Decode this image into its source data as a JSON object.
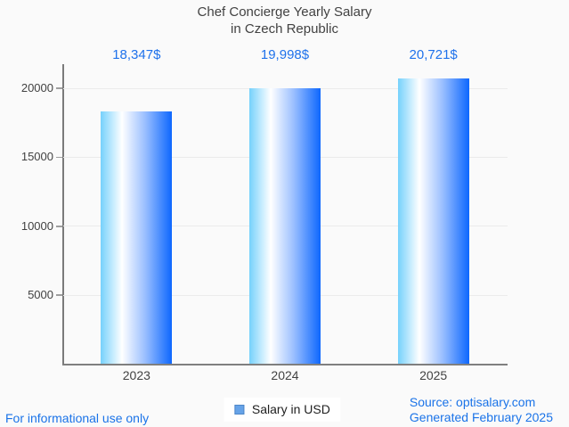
{
  "chart_data": {
    "type": "bar",
    "title": "Chef Concierge Yearly Salary",
    "subtitle": "in Czech Republic",
    "categories": [
      "2023",
      "2024",
      "2025"
    ],
    "values": [
      18347,
      19998,
      20721
    ],
    "value_labels": [
      "18,347$",
      "19,998$",
      "20,721$"
    ],
    "series": [
      {
        "name": "Salary in USD",
        "values": [
          18347,
          19998,
          20721
        ]
      }
    ],
    "yticks": [
      5000,
      10000,
      15000,
      20000
    ],
    "ytick_labels": [
      "5000",
      "10000",
      "15000",
      "20000"
    ],
    "ylim": [
      0,
      21700
    ],
    "grid": true,
    "legend_position": "bottom"
  },
  "legend": {
    "label": "Salary in USD"
  },
  "footer": {
    "disclaimer": "For informational use only",
    "source": "Source: optisalary.com",
    "generated": "Generated February 2025"
  },
  "colors": {
    "background": "#fafafa",
    "accent_blue": "#1a73e8",
    "annotation_blue": "#1f72eb",
    "bar_gradient_left": "#76d1fc",
    "bar_gradient_mid": "#ffffff",
    "bar_gradient_right": "#0d67fe",
    "axis": "#7f7f7f",
    "gridline": "#ebebeb",
    "tick": "#9e9e9e",
    "text_dark": "#424242",
    "legend_swatch_fill": "#66a3e8",
    "legend_swatch_border": "#4d86c8",
    "legend_bg": "#ffffff"
  }
}
